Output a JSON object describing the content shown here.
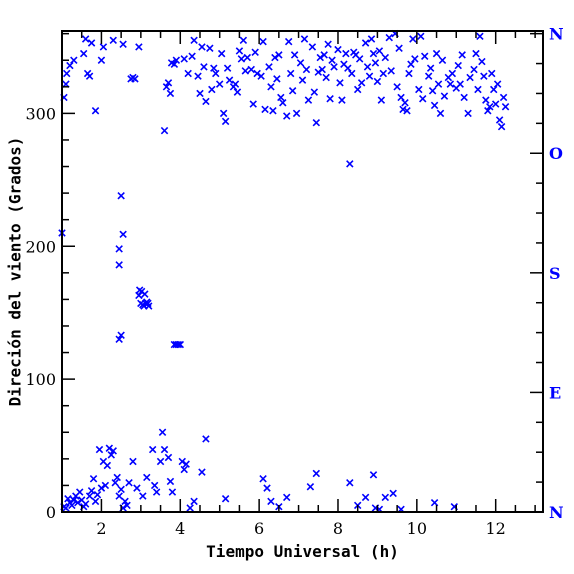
{
  "chart_data": {
    "type": "scatter",
    "xlabel": "Tiempo Universal (h)",
    "ylabel": "Direción del viento (Grados)",
    "xlim": [
      1,
      13.2
    ],
    "ylim": [
      0,
      362
    ],
    "xticks": [
      2,
      4,
      6,
      8,
      10,
      12
    ],
    "yticks": [
      0,
      100,
      200,
      300
    ],
    "right_axis_labels": [
      {
        "value": 0,
        "label": "N"
      },
      {
        "value": 90,
        "label": "E"
      },
      {
        "value": 180,
        "label": "S"
      },
      {
        "value": 270,
        "label": "O"
      },
      {
        "value": 360,
        "label": "N"
      }
    ],
    "marker": "x",
    "color": "#0000ff",
    "grid": false,
    "series": [
      {
        "points": [
          [
            1.0,
            210
          ],
          [
            1.05,
            312
          ],
          [
            1.1,
            322
          ],
          [
            1.12,
            330
          ],
          [
            1.2,
            336
          ],
          [
            1.3,
            340
          ],
          [
            1.55,
            345
          ],
          [
            1.6,
            356
          ],
          [
            1.65,
            330
          ],
          [
            1.7,
            328
          ],
          [
            1.75,
            353
          ],
          [
            1.85,
            302
          ],
          [
            2.0,
            340
          ],
          [
            2.05,
            350
          ],
          [
            2.3,
            355
          ],
          [
            2.55,
            352
          ],
          [
            2.75,
            326
          ],
          [
            2.8,
            327
          ],
          [
            2.85,
            326
          ],
          [
            2.95,
            350
          ],
          [
            3.6,
            287
          ],
          [
            3.65,
            320
          ],
          [
            3.7,
            323
          ],
          [
            3.75,
            315
          ],
          [
            3.78,
            338
          ],
          [
            3.85,
            337
          ],
          [
            3.9,
            340
          ],
          [
            4.1,
            341
          ],
          [
            4.2,
            330
          ],
          [
            4.3,
            343
          ],
          [
            4.35,
            355
          ],
          [
            4.45,
            328
          ],
          [
            4.5,
            315
          ],
          [
            4.55,
            350
          ],
          [
            4.6,
            335
          ],
          [
            4.65,
            309
          ],
          [
            4.75,
            349
          ],
          [
            4.8,
            318
          ],
          [
            4.85,
            334
          ],
          [
            4.9,
            330
          ],
          [
            5.0,
            322
          ],
          [
            5.05,
            345
          ],
          [
            5.1,
            300
          ],
          [
            5.15,
            294
          ],
          [
            5.2,
            334
          ],
          [
            5.25,
            325
          ],
          [
            5.35,
            320
          ],
          [
            5.4,
            322
          ],
          [
            5.45,
            316
          ],
          [
            5.5,
            347
          ],
          [
            5.55,
            341
          ],
          [
            5.6,
            355
          ],
          [
            5.65,
            332
          ],
          [
            5.7,
            342
          ],
          [
            5.8,
            333
          ],
          [
            5.85,
            307
          ],
          [
            5.9,
            346
          ],
          [
            5.95,
            330
          ],
          [
            6.05,
            328
          ],
          [
            6.1,
            354
          ],
          [
            6.15,
            303
          ],
          [
            6.25,
            335
          ],
          [
            6.3,
            320
          ],
          [
            6.35,
            302
          ],
          [
            6.4,
            342
          ],
          [
            6.45,
            326
          ],
          [
            6.5,
            344
          ],
          [
            6.55,
            312
          ],
          [
            6.6,
            308
          ],
          [
            6.7,
            298
          ],
          [
            6.75,
            354
          ],
          [
            6.8,
            330
          ],
          [
            6.85,
            317
          ],
          [
            6.9,
            344
          ],
          [
            6.95,
            300
          ],
          [
            7.05,
            338
          ],
          [
            7.1,
            325
          ],
          [
            7.15,
            356
          ],
          [
            7.2,
            333
          ],
          [
            7.25,
            310
          ],
          [
            7.35,
            350
          ],
          [
            7.4,
            316
          ],
          [
            7.45,
            293
          ],
          [
            7.5,
            331
          ],
          [
            7.55,
            342
          ],
          [
            7.6,
            333
          ],
          [
            7.65,
            344
          ],
          [
            7.7,
            327
          ],
          [
            7.75,
            352
          ],
          [
            7.8,
            311
          ],
          [
            7.85,
            340
          ],
          [
            7.9,
            335
          ],
          [
            8.0,
            348
          ],
          [
            8.05,
            323
          ],
          [
            8.1,
            310
          ],
          [
            8.15,
            337
          ],
          [
            8.2,
            345
          ],
          [
            8.25,
            334
          ],
          [
            8.3,
            262
          ],
          [
            8.35,
            330
          ],
          [
            8.4,
            346
          ],
          [
            8.45,
            344
          ],
          [
            8.5,
            318
          ],
          [
            8.55,
            341
          ],
          [
            8.6,
            323
          ],
          [
            8.7,
            353
          ],
          [
            8.75,
            335
          ],
          [
            8.8,
            328
          ],
          [
            8.85,
            356
          ],
          [
            8.9,
            345
          ],
          [
            8.95,
            338
          ],
          [
            9.0,
            324
          ],
          [
            9.05,
            347
          ],
          [
            9.1,
            310
          ],
          [
            9.15,
            330
          ],
          [
            9.2,
            342
          ],
          [
            9.3,
            357
          ],
          [
            9.35,
            332
          ],
          [
            9.45,
            360
          ],
          [
            9.5,
            320
          ],
          [
            9.55,
            349
          ],
          [
            9.6,
            312
          ],
          [
            9.65,
            303
          ],
          [
            9.7,
            308
          ],
          [
            9.75,
            302
          ],
          [
            9.8,
            330
          ],
          [
            9.85,
            337
          ],
          [
            9.9,
            356
          ],
          [
            9.95,
            341
          ],
          [
            10.05,
            318
          ],
          [
            10.1,
            358
          ],
          [
            10.15,
            311
          ],
          [
            10.2,
            343
          ],
          [
            10.3,
            328
          ],
          [
            10.35,
            334
          ],
          [
            10.4,
            317
          ],
          [
            10.45,
            306
          ],
          [
            10.5,
            345
          ],
          [
            10.55,
            322
          ],
          [
            10.6,
            300
          ],
          [
            10.65,
            340
          ],
          [
            10.7,
            313
          ],
          [
            10.8,
            327
          ],
          [
            10.85,
            322
          ],
          [
            10.9,
            330
          ],
          [
            11.0,
            319
          ],
          [
            11.05,
            336
          ],
          [
            11.1,
            322
          ],
          [
            11.15,
            344
          ],
          [
            11.2,
            312
          ],
          [
            11.3,
            300
          ],
          [
            11.35,
            327
          ],
          [
            11.45,
            333
          ],
          [
            11.5,
            345
          ],
          [
            11.55,
            318
          ],
          [
            11.6,
            358
          ],
          [
            11.65,
            339
          ],
          [
            11.7,
            328
          ],
          [
            11.75,
            310
          ],
          [
            11.8,
            302
          ],
          [
            11.85,
            305
          ],
          [
            11.9,
            330
          ],
          [
            11.95,
            318
          ],
          [
            12.0,
            307
          ],
          [
            12.05,
            322
          ],
          [
            12.1,
            295
          ],
          [
            12.15,
            290
          ],
          [
            12.2,
            312
          ],
          [
            12.25,
            305
          ],
          [
            2.45,
            130
          ],
          [
            2.5,
            133
          ],
          [
            2.45,
            186
          ],
          [
            2.45,
            198
          ],
          [
            2.5,
            238
          ],
          [
            2.55,
            209
          ],
          [
            2.95,
            163
          ],
          [
            2.97,
            167
          ],
          [
            3.0,
            157
          ],
          [
            3.02,
            166
          ],
          [
            3.05,
            156
          ],
          [
            3.08,
            155
          ],
          [
            3.1,
            164
          ],
          [
            3.12,
            157
          ],
          [
            3.15,
            158
          ],
          [
            3.18,
            157
          ],
          [
            3.2,
            155
          ],
          [
            3.85,
            126
          ],
          [
            3.9,
            126
          ],
          [
            3.95,
            126
          ],
          [
            4.0,
            126
          ],
          [
            1.05,
            4
          ],
          [
            1.1,
            3
          ],
          [
            1.15,
            10
          ],
          [
            1.2,
            7
          ],
          [
            1.25,
            5
          ],
          [
            1.3,
            9
          ],
          [
            1.35,
            12
          ],
          [
            1.4,
            7
          ],
          [
            1.45,
            15
          ],
          [
            1.5,
            9
          ],
          [
            1.55,
            4
          ],
          [
            1.6,
            6
          ],
          [
            1.7,
            12
          ],
          [
            1.75,
            16
          ],
          [
            1.8,
            25
          ],
          [
            1.85,
            8
          ],
          [
            1.9,
            13
          ],
          [
            1.95,
            47
          ],
          [
            2.0,
            18
          ],
          [
            2.05,
            38
          ],
          [
            2.1,
            20
          ],
          [
            2.15,
            35
          ],
          [
            2.2,
            48
          ],
          [
            2.25,
            43
          ],
          [
            2.3,
            46
          ],
          [
            2.35,
            22
          ],
          [
            2.4,
            26
          ],
          [
            2.45,
            12
          ],
          [
            2.5,
            17
          ],
          [
            2.55,
            3
          ],
          [
            2.6,
            8
          ],
          [
            2.65,
            5
          ],
          [
            2.7,
            22
          ],
          [
            2.8,
            38
          ],
          [
            2.9,
            18
          ],
          [
            3.05,
            12
          ],
          [
            3.15,
            26
          ],
          [
            3.3,
            47
          ],
          [
            3.35,
            20
          ],
          [
            3.4,
            15
          ],
          [
            3.5,
            38
          ],
          [
            3.55,
            60
          ],
          [
            3.6,
            47
          ],
          [
            3.7,
            41
          ],
          [
            3.75,
            23
          ],
          [
            3.8,
            15
          ],
          [
            4.05,
            38
          ],
          [
            4.1,
            32
          ],
          [
            4.15,
            36
          ],
          [
            4.25,
            3
          ],
          [
            4.35,
            8
          ],
          [
            4.55,
            30
          ],
          [
            4.65,
            55
          ],
          [
            5.15,
            10
          ],
          [
            6.1,
            25
          ],
          [
            6.2,
            18
          ],
          [
            6.3,
            8
          ],
          [
            6.5,
            4
          ],
          [
            6.7,
            11
          ],
          [
            7.3,
            19
          ],
          [
            7.45,
            29
          ],
          [
            8.3,
            22
          ],
          [
            8.5,
            5
          ],
          [
            8.7,
            11
          ],
          [
            8.9,
            28
          ],
          [
            8.95,
            3
          ],
          [
            9.05,
            2
          ],
          [
            9.2,
            11
          ],
          [
            9.4,
            14
          ],
          [
            9.6,
            2
          ],
          [
            10.45,
            7
          ],
          [
            10.95,
            4
          ]
        ]
      }
    ]
  }
}
